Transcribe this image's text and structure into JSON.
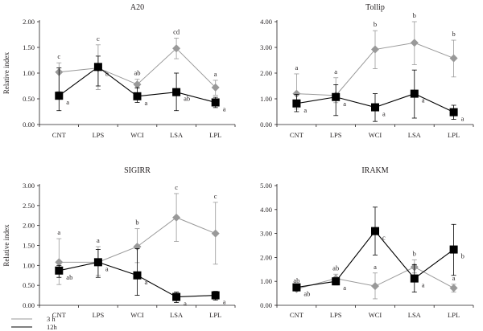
{
  "chart_data": [
    {
      "type": "line",
      "title": "A20",
      "ylabel": "Relative index",
      "xlabel": "",
      "categories": [
        "CNT",
        "LPS",
        "WCI",
        "LSA",
        "LPL"
      ],
      "ylim": [
        0,
        2.0
      ],
      "yticks": [
        "0.00",
        "0.50",
        "1.00",
        "1.50",
        "2.00"
      ],
      "series": [
        {
          "name": "3 h",
          "color": "#999999",
          "marker": "diamond",
          "values": [
            1.02,
            1.1,
            0.78,
            1.48,
            0.72
          ],
          "err_low": [
            0.64,
            0.68,
            0.7,
            1.28,
            0.57
          ],
          "err_high": [
            1.2,
            1.55,
            0.88,
            1.68,
            0.86
          ],
          "labels": [
            "c",
            "c",
            "ab",
            "cd",
            "a"
          ]
        },
        {
          "name": "12h",
          "color": "#000000",
          "marker": "square",
          "values": [
            0.56,
            1.12,
            0.55,
            0.63,
            0.43
          ],
          "err_low": [
            0.27,
            0.75,
            0.43,
            0.27,
            0.33
          ],
          "err_high": [
            1.1,
            1.33,
            0.72,
            1.0,
            0.53
          ],
          "labels": [
            "a",
            "b",
            "a",
            "ab",
            "a"
          ]
        }
      ]
    },
    {
      "type": "line",
      "title": "Tollip",
      "ylabel": "",
      "xlabel": "",
      "categories": [
        "CNT",
        "LPS",
        "WCI",
        "LSA",
        "LPL"
      ],
      "ylim": [
        0,
        4.0
      ],
      "yticks": [
        "0.00",
        "1.00",
        "2.00",
        "3.00",
        "4.00"
      ],
      "series": [
        {
          "name": "3 h",
          "color": "#999999",
          "marker": "diamond",
          "values": [
            1.2,
            1.13,
            2.92,
            3.18,
            2.58
          ],
          "err_low": [
            0.6,
            0.85,
            2.17,
            2.33,
            1.85
          ],
          "err_high": [
            1.97,
            1.82,
            3.65,
            4.0,
            3.28
          ],
          "labels": [
            "a",
            "a",
            "b",
            "b",
            "b"
          ]
        },
        {
          "name": "12h",
          "color": "#000000",
          "marker": "square",
          "values": [
            0.82,
            1.07,
            0.67,
            1.2,
            0.48
          ],
          "err_low": [
            0.5,
            0.35,
            0.12,
            0.25,
            0.2
          ],
          "err_high": [
            1.17,
            1.55,
            1.2,
            2.12,
            0.75
          ],
          "labels": [
            "a",
            "a",
            "a",
            "a",
            "a"
          ]
        }
      ]
    },
    {
      "type": "line",
      "title": "SIGIRR",
      "ylabel": "Relative index",
      "xlabel": "",
      "categories": [
        "CNT",
        "LPS",
        "WCI",
        "LSA",
        "LPL"
      ],
      "ylim": [
        0,
        3.0
      ],
      "yticks": [
        "0.00",
        "0.50",
        "1.00",
        "1.50",
        "2.00",
        "2.50",
        "3.00"
      ],
      "series": [
        {
          "name": "3 h",
          "color": "#999999",
          "marker": "diamond",
          "values": [
            1.08,
            1.08,
            1.47,
            2.2,
            1.8
          ],
          "err_low": [
            0.52,
            0.75,
            1.07,
            1.6,
            1.03
          ],
          "err_high": [
            1.67,
            1.47,
            1.92,
            2.8,
            2.58
          ],
          "labels": [
            "a",
            "a",
            "b",
            "c",
            "c"
          ]
        },
        {
          "name": "12h",
          "color": "#000000",
          "marker": "square",
          "values": [
            0.87,
            1.08,
            0.75,
            0.21,
            0.25
          ],
          "err_low": [
            0.7,
            0.7,
            0.25,
            0.07,
            0.13
          ],
          "err_high": [
            1.0,
            1.4,
            1.42,
            0.33,
            0.35
          ],
          "labels": [
            "ab",
            "a",
            "a",
            "a",
            "a"
          ]
        }
      ]
    },
    {
      "type": "line",
      "title": "IRAKM",
      "ylabel": "",
      "xlabel": "",
      "categories": [
        "CNT",
        "LPS",
        "WCI",
        "LSA",
        "LPL"
      ],
      "ylim": [
        0,
        5.0
      ],
      "yticks": [
        "0.00",
        "1.00",
        "2.00",
        "3.00",
        "4.00",
        "5.00"
      ],
      "series": [
        {
          "name": "3 h",
          "color": "#999999",
          "marker": "diamond",
          "values": [
            0.68,
            1.12,
            0.8,
            1.6,
            0.72
          ],
          "err_low": [
            0.6,
            0.9,
            0.27,
            1.35,
            0.55
          ],
          "err_high": [
            0.78,
            1.3,
            1.35,
            1.9,
            0.88
          ],
          "labels": [
            "ab",
            "ab",
            "a",
            "b",
            "a"
          ]
        },
        {
          "name": "12h",
          "color": "#000000",
          "marker": "square",
          "values": [
            0.75,
            1.0,
            3.1,
            1.12,
            2.33
          ],
          "err_low": [
            0.65,
            0.85,
            2.1,
            0.55,
            1.25
          ],
          "err_high": [
            0.85,
            1.15,
            4.1,
            1.7,
            3.38
          ],
          "labels": [
            "ab",
            "a",
            "c",
            "a",
            "b"
          ]
        }
      ]
    }
  ],
  "legend": {
    "items": [
      {
        "label": "3 h",
        "color": "#999999"
      },
      {
        "label": "12h",
        "color": "#000000"
      }
    ],
    "placement": "bottom-left"
  }
}
